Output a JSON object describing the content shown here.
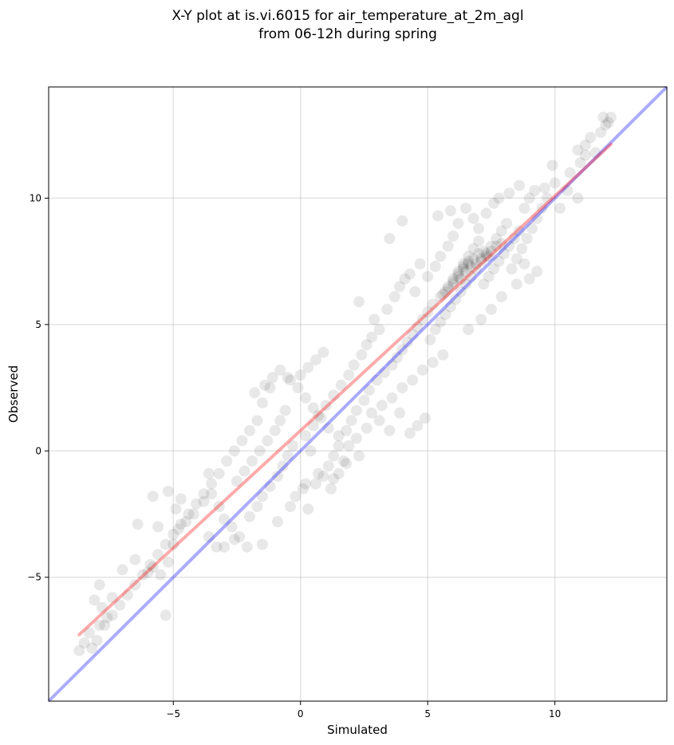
{
  "chart_data": {
    "type": "scatter",
    "title": "X-Y plot at is.vi.6015 for air_temperature_at_2m_agl",
    "subtitle": "from 06-12h during spring",
    "xlabel": "Simulated",
    "ylabel": "Observed",
    "xlim": [
      -9.9,
      14.4
    ],
    "ylim": [
      -9.9,
      14.4
    ],
    "xticks": [
      -5,
      0,
      5,
      10
    ],
    "yticks": [
      -5,
      0,
      5,
      10
    ],
    "xtick_labels": [
      "−5",
      "0",
      "5",
      "10"
    ],
    "ytick_labels": [
      "−5",
      "0",
      "5",
      "10"
    ],
    "grid": true,
    "point_color": "#000000",
    "point_alpha": 0.09,
    "points": [
      [
        -8.7,
        -7.9
      ],
      [
        -8.5,
        -7.6
      ],
      [
        -8.2,
        -7.8
      ],
      [
        -8.0,
        -7.5
      ],
      [
        -8.3,
        -7.2
      ],
      [
        -7.9,
        -6.9
      ],
      [
        -7.6,
        -6.6
      ],
      [
        -7.8,
        -6.2
      ],
      [
        -8.1,
        -5.9
      ],
      [
        -7.4,
        -5.8
      ],
      [
        -7.9,
        -5.3
      ],
      [
        -7.0,
        -4.7
      ],
      [
        -6.5,
        -4.3
      ],
      [
        -6.0,
        -4.8
      ],
      [
        -5.8,
        -4.6
      ],
      [
        -5.5,
        -4.9
      ],
      [
        -5.2,
        -4.4
      ],
      [
        -5.0,
        -3.7
      ],
      [
        -5.6,
        -3.0
      ],
      [
        -4.8,
        -3.1
      ],
      [
        -4.5,
        -2.8
      ],
      [
        -4.9,
        -2.3
      ],
      [
        -4.2,
        -2.5
      ],
      [
        -3.8,
        -2.0
      ],
      [
        -3.5,
        -1.7
      ],
      [
        -3.2,
        -2.2
      ],
      [
        -3.0,
        -2.7
      ],
      [
        -2.7,
        -3.0
      ],
      [
        -2.4,
        -3.4
      ],
      [
        -2.1,
        -3.8
      ],
      [
        -3.6,
        -3.4
      ],
      [
        -3.3,
        -3.8
      ],
      [
        -2.0,
        -2.6
      ],
      [
        -1.7,
        -2.2
      ],
      [
        -1.5,
        -1.8
      ],
      [
        -1.2,
        -1.4
      ],
      [
        -0.9,
        -1.0
      ],
      [
        -0.7,
        -0.6
      ],
      [
        -0.5,
        -0.2
      ],
      [
        -0.3,
        0.2
      ],
      [
        -2.5,
        -1.2
      ],
      [
        -2.2,
        -0.8
      ],
      [
        -1.9,
        -0.4
      ],
      [
        -1.6,
        0.0
      ],
      [
        -1.3,
        0.4
      ],
      [
        -1.0,
        0.8
      ],
      [
        -0.8,
        1.2
      ],
      [
        -0.6,
        1.6
      ],
      [
        -1.8,
        2.3
      ],
      [
        -1.5,
        1.9
      ],
      [
        -1.2,
        2.5
      ],
      [
        -0.4,
        2.8
      ],
      [
        0.0,
        3.0
      ],
      [
        0.3,
        3.3
      ],
      [
        0.6,
        3.6
      ],
      [
        0.9,
        3.9
      ],
      [
        -0.2,
        -1.8
      ],
      [
        0.1,
        -1.5
      ],
      [
        0.3,
        -2.3
      ],
      [
        0.6,
        -1.3
      ],
      [
        0.9,
        -1.0
      ],
      [
        1.1,
        -0.6
      ],
      [
        1.3,
        -0.2
      ],
      [
        1.5,
        0.2
      ],
      [
        1.2,
        -1.5
      ],
      [
        1.5,
        -0.9
      ],
      [
        1.7,
        -0.4
      ],
      [
        0.4,
        0.0
      ],
      [
        0.2,
        0.6
      ],
      [
        0.5,
        1.0
      ],
      [
        0.7,
        1.4
      ],
      [
        1.0,
        1.8
      ],
      [
        1.3,
        2.2
      ],
      [
        1.6,
        2.6
      ],
      [
        1.9,
        3.0
      ],
      [
        2.1,
        3.4
      ],
      [
        2.4,
        3.8
      ],
      [
        2.6,
        4.2
      ],
      [
        2.8,
        4.5
      ],
      [
        3.1,
        4.8
      ],
      [
        1.8,
        0.8
      ],
      [
        2.0,
        1.2
      ],
      [
        2.2,
        1.6
      ],
      [
        2.5,
        2.0
      ],
      [
        2.7,
        2.4
      ],
      [
        3.0,
        2.8
      ],
      [
        3.3,
        3.1
      ],
      [
        3.6,
        3.4
      ],
      [
        3.8,
        3.7
      ],
      [
        4.0,
        4.0
      ],
      [
        4.2,
        4.3
      ],
      [
        4.4,
        4.6
      ],
      [
        4.6,
        4.9
      ],
      [
        4.8,
        5.2
      ],
      [
        5.0,
        5.5
      ],
      [
        5.2,
        5.8
      ],
      [
        2.3,
        5.9
      ],
      [
        2.9,
        5.2
      ],
      [
        3.4,
        5.6
      ],
      [
        3.7,
        6.1
      ],
      [
        3.9,
        6.5
      ],
      [
        4.1,
        6.8
      ],
      [
        4.3,
        7.0
      ],
      [
        4.5,
        6.3
      ],
      [
        3.5,
        8.4
      ],
      [
        4.0,
        9.1
      ],
      [
        4.7,
        7.4
      ],
      [
        5.0,
        6.9
      ],
      [
        5.3,
        7.3
      ],
      [
        5.5,
        7.7
      ],
      [
        5.8,
        8.1
      ],
      [
        6.0,
        8.5
      ],
      [
        5.4,
        9.3
      ],
      [
        5.9,
        9.5
      ],
      [
        6.2,
        9.0
      ],
      [
        6.5,
        9.6
      ],
      [
        6.8,
        9.2
      ],
      [
        7.0,
        8.8
      ],
      [
        7.3,
        9.4
      ],
      [
        7.6,
        9.8
      ],
      [
        5.1,
        4.4
      ],
      [
        5.3,
        4.8
      ],
      [
        5.5,
        5.1
      ],
      [
        5.7,
        5.4
      ],
      [
        5.9,
        5.7
      ],
      [
        6.1,
        6.0
      ],
      [
        6.3,
        6.3
      ],
      [
        6.5,
        6.6
      ],
      [
        5.6,
        6.2
      ],
      [
        5.8,
        6.5
      ],
      [
        6.0,
        6.8
      ],
      [
        6.2,
        7.1
      ],
      [
        6.4,
        7.4
      ],
      [
        6.6,
        7.7
      ],
      [
        6.8,
        8.0
      ],
      [
        7.0,
        8.3
      ],
      [
        6.7,
        6.9
      ],
      [
        6.9,
        7.2
      ],
      [
        7.1,
        7.5
      ],
      [
        7.3,
        7.8
      ],
      [
        7.5,
        8.1
      ],
      [
        7.7,
        8.4
      ],
      [
        7.9,
        8.7
      ],
      [
        8.1,
        9.0
      ],
      [
        7.2,
        6.6
      ],
      [
        7.4,
        6.9
      ],
      [
        7.6,
        7.2
      ],
      [
        7.8,
        7.5
      ],
      [
        8.0,
        7.8
      ],
      [
        8.2,
        8.1
      ],
      [
        8.4,
        8.4
      ],
      [
        8.6,
        8.7
      ],
      [
        8.3,
        7.2
      ],
      [
        8.5,
        7.6
      ],
      [
        8.7,
        8.0
      ],
      [
        8.9,
        8.4
      ],
      [
        9.1,
        8.8
      ],
      [
        9.3,
        9.2
      ],
      [
        9.5,
        9.6
      ],
      [
        9.7,
        10.0
      ],
      [
        8.8,
        9.6
      ],
      [
        9.0,
        10.0
      ],
      [
        9.2,
        10.3
      ],
      [
        9.6,
        10.4
      ],
      [
        10.0,
        10.6
      ],
      [
        10.2,
        9.6
      ],
      [
        10.5,
        10.3
      ],
      [
        10.9,
        10.0
      ],
      [
        10.6,
        11.0
      ],
      [
        11.0,
        11.4
      ],
      [
        11.2,
        11.7
      ],
      [
        11.6,
        11.8
      ],
      [
        11.8,
        12.6
      ],
      [
        12.1,
        13.0
      ],
      [
        12.2,
        13.2
      ],
      [
        11.9,
        13.2
      ],
      [
        11.4,
        12.4
      ],
      [
        10.9,
        11.9
      ],
      [
        11.2,
        12.1
      ],
      [
        12.0,
        12.9
      ],
      [
        9.9,
        11.3
      ],
      [
        8.6,
        10.5
      ],
      [
        8.2,
        10.2
      ],
      [
        7.8,
        10.0
      ],
      [
        9.0,
        6.8
      ],
      [
        9.3,
        7.1
      ],
      [
        8.8,
        7.4
      ],
      [
        8.5,
        6.6
      ],
      [
        7.9,
        6.1
      ],
      [
        7.5,
        5.6
      ],
      [
        7.1,
        5.2
      ],
      [
        6.6,
        4.8
      ],
      [
        5.6,
        3.8
      ],
      [
        5.2,
        3.5
      ],
      [
        4.8,
        3.2
      ],
      [
        4.4,
        2.8
      ],
      [
        4.0,
        2.5
      ],
      [
        3.6,
        2.1
      ],
      [
        3.2,
        1.8
      ],
      [
        2.8,
        1.5
      ],
      [
        4.6,
        1.0
      ],
      [
        4.3,
        0.7
      ],
      [
        4.9,
        1.3
      ],
      [
        3.9,
        1.5
      ],
      [
        3.5,
        0.8
      ],
      [
        3.1,
        1.2
      ],
      [
        2.6,
        0.9
      ],
      [
        2.2,
        0.5
      ],
      [
        1.9,
        0.2
      ],
      [
        1.5,
        0.6
      ],
      [
        1.1,
        0.9
      ],
      [
        0.8,
        1.3
      ],
      [
        0.5,
        1.7
      ],
      [
        0.2,
        2.1
      ],
      [
        -0.1,
        2.5
      ],
      [
        -0.5,
        2.9
      ],
      [
        -0.8,
        3.2
      ],
      [
        -1.1,
        2.9
      ],
      [
        -1.4,
        2.6
      ],
      [
        -1.7,
        1.2
      ],
      [
        -2.0,
        0.8
      ],
      [
        -2.3,
        0.4
      ],
      [
        -2.6,
        0.0
      ],
      [
        -2.9,
        -0.4
      ],
      [
        -3.2,
        -0.9
      ],
      [
        -3.5,
        -1.3
      ],
      [
        -3.8,
        -1.7
      ],
      [
        -4.1,
        -2.1
      ],
      [
        -4.4,
        -2.5
      ],
      [
        -4.7,
        -2.9
      ],
      [
        -5.0,
        -3.3
      ],
      [
        -5.3,
        -3.7
      ],
      [
        -5.6,
        -4.1
      ],
      [
        -5.9,
        -4.5
      ],
      [
        -6.2,
        -4.9
      ],
      [
        -6.5,
        -5.3
      ],
      [
        -6.8,
        -5.7
      ],
      [
        -7.1,
        -6.1
      ],
      [
        -7.4,
        -6.5
      ],
      [
        -7.7,
        -6.9
      ],
      [
        -5.3,
        -6.5
      ],
      [
        -5.8,
        -1.8
      ],
      [
        -5.2,
        -1.6
      ],
      [
        -4.7,
        -1.9
      ],
      [
        -3.6,
        -0.9
      ],
      [
        -6.4,
        -2.9
      ],
      [
        -3.0,
        -3.8
      ],
      [
        -2.6,
        -3.5
      ],
      [
        -1.5,
        -3.7
      ],
      [
        -0.9,
        -2.8
      ],
      [
        -0.4,
        -2.2
      ],
      [
        0.2,
        -1.3
      ],
      [
        0.7,
        -0.9
      ],
      [
        1.3,
        -1.1
      ],
      [
        1.8,
        -0.5
      ],
      [
        2.3,
        -0.2
      ],
      [
        6.2,
        7.0
      ],
      [
        6.4,
        7.3
      ],
      [
        6.6,
        7.5
      ],
      [
        6.8,
        7.6
      ],
      [
        7.0,
        7.8
      ],
      [
        7.2,
        7.9
      ],
      [
        6.3,
        6.8
      ],
      [
        6.5,
        7.1
      ],
      [
        6.7,
        7.3
      ],
      [
        6.9,
        7.4
      ],
      [
        7.1,
        7.6
      ],
      [
        7.3,
        7.7
      ],
      [
        6.0,
        6.6
      ],
      [
        6.2,
        6.9
      ],
      [
        6.4,
        7.2
      ],
      [
        6.6,
        7.4
      ],
      [
        5.8,
        6.4
      ],
      [
        6.0,
        6.7
      ],
      [
        7.5,
        7.9
      ],
      [
        7.7,
        8.1
      ],
      [
        7.9,
        8.2
      ],
      [
        5.5,
        6.1
      ],
      [
        5.7,
        6.3
      ],
      [
        7.4,
        7.7
      ]
    ]
  }
}
